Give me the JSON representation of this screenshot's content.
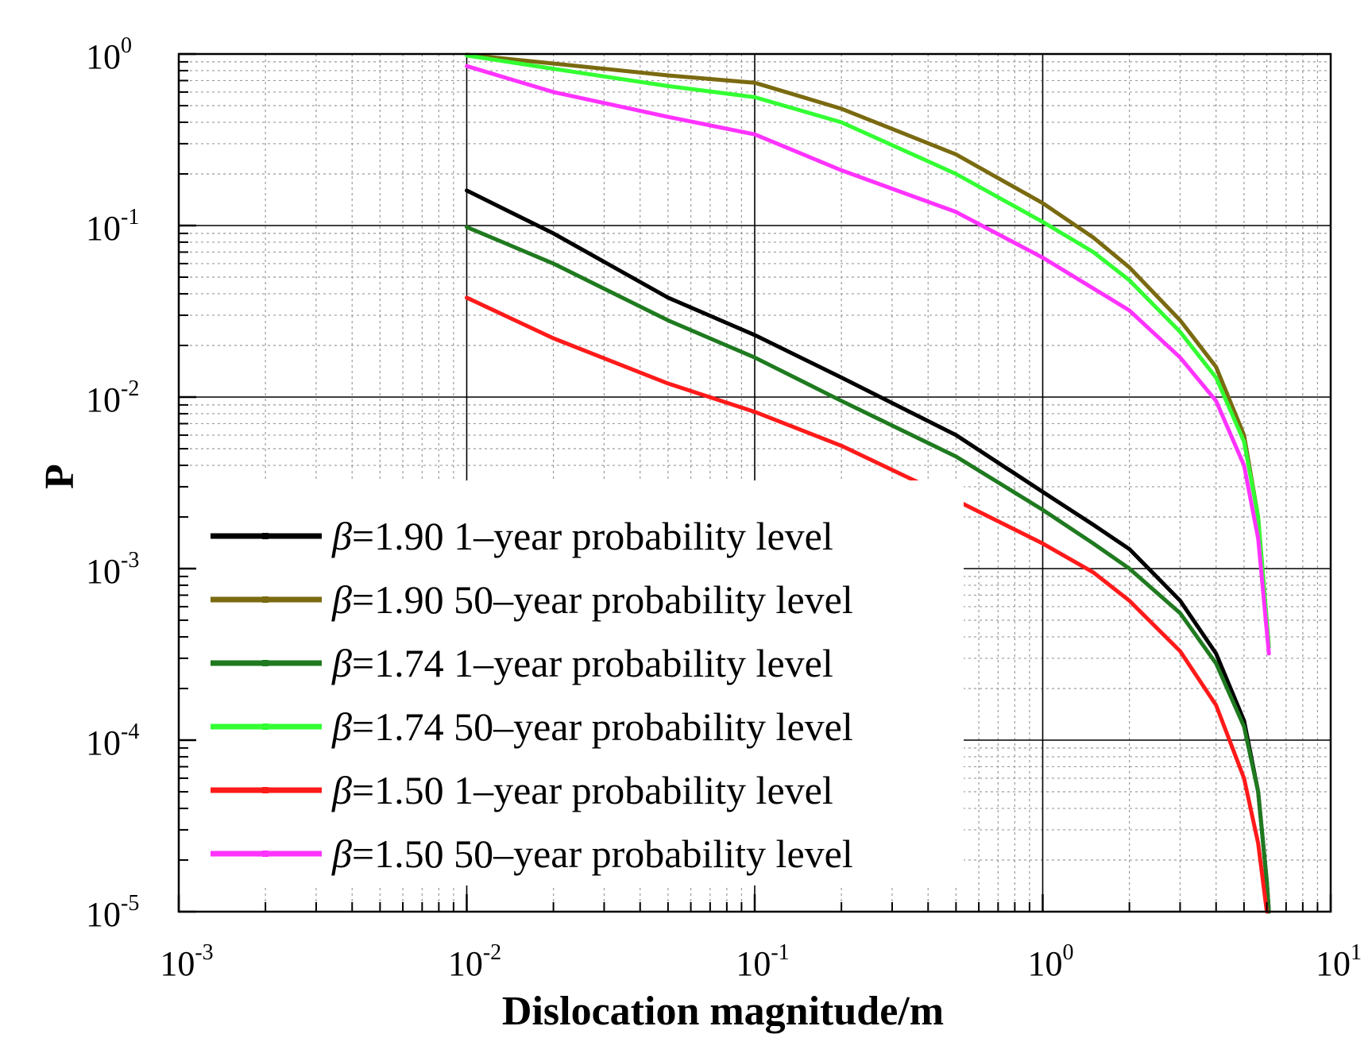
{
  "chart_data": {
    "type": "line",
    "xlabel": "Dislocation magnitude/m",
    "ylabel": "P",
    "x_scale": "log",
    "y_scale": "log",
    "xlim": [
      0.001,
      10
    ],
    "ylim": [
      1e-05,
      1
    ],
    "x_ticks": [
      {
        "base": "10",
        "exp": "-3"
      },
      {
        "base": "10",
        "exp": "-2"
      },
      {
        "base": "10",
        "exp": "-1"
      },
      {
        "base": "10",
        "exp": "0"
      },
      {
        "base": "10",
        "exp": "1"
      }
    ],
    "y_ticks": [
      {
        "base": "10",
        "exp": "0"
      },
      {
        "base": "10",
        "exp": "-1"
      },
      {
        "base": "10",
        "exp": "-2"
      },
      {
        "base": "10",
        "exp": "-3"
      },
      {
        "base": "10",
        "exp": "-4"
      },
      {
        "base": "10",
        "exp": "-5"
      }
    ],
    "grid": true,
    "legend_position": "lower-left",
    "series": [
      {
        "name": "β=1.90 1–year probability level",
        "beta": "β",
        "label": "=1.90 1–year probability level",
        "color": "#000000",
        "points": [
          [
            0.01,
            0.16
          ],
          [
            0.02,
            0.09
          ],
          [
            0.05,
            0.038
          ],
          [
            0.1,
            0.023
          ],
          [
            0.2,
            0.013
          ],
          [
            0.5,
            0.006
          ],
          [
            1,
            0.0028
          ],
          [
            1.5,
            0.0018
          ],
          [
            2,
            0.0013
          ],
          [
            3,
            0.00065
          ],
          [
            4,
            0.00032
          ],
          [
            5,
            0.00013
          ],
          [
            5.6,
            5e-05
          ],
          [
            6,
            1.5e-05
          ],
          [
            6.1,
            1e-05
          ]
        ]
      },
      {
        "name": "β=1.90 50–year probability level",
        "beta": "β",
        "label": "=1.90 50–year probability level",
        "color": "#7a6a10",
        "points": [
          [
            0.01,
            0.99
          ],
          [
            0.02,
            0.88
          ],
          [
            0.05,
            0.75
          ],
          [
            0.1,
            0.68
          ],
          [
            0.2,
            0.48
          ],
          [
            0.5,
            0.26
          ],
          [
            1,
            0.135
          ],
          [
            1.5,
            0.085
          ],
          [
            2,
            0.057
          ],
          [
            3,
            0.028
          ],
          [
            4,
            0.015
          ],
          [
            5,
            0.006
          ],
          [
            5.6,
            0.002
          ],
          [
            6.1,
            0.00035
          ]
        ]
      },
      {
        "name": "β=1.74 1–year probability level",
        "beta": "β",
        "label": "=1.74 1–year probability level",
        "color": "#1f7a1f",
        "points": [
          [
            0.01,
            0.098
          ],
          [
            0.02,
            0.06
          ],
          [
            0.05,
            0.028
          ],
          [
            0.1,
            0.017
          ],
          [
            0.2,
            0.0095
          ],
          [
            0.5,
            0.0045
          ],
          [
            1,
            0.0022
          ],
          [
            1.5,
            0.0014
          ],
          [
            2,
            0.001
          ],
          [
            3,
            0.00055
          ],
          [
            4,
            0.00028
          ],
          [
            5,
            0.00012
          ],
          [
            5.6,
            5e-05
          ],
          [
            6,
            1.5e-05
          ],
          [
            6.1,
            1e-05
          ]
        ]
      },
      {
        "name": "β=1.74 50–year probability level",
        "beta": "β",
        "label": "=1.74 50–year probability level",
        "color": "#33ff33",
        "points": [
          [
            0.01,
            0.98
          ],
          [
            0.02,
            0.82
          ],
          [
            0.05,
            0.65
          ],
          [
            0.1,
            0.56
          ],
          [
            0.2,
            0.4
          ],
          [
            0.5,
            0.2
          ],
          [
            1,
            0.105
          ],
          [
            1.5,
            0.07
          ],
          [
            2,
            0.048
          ],
          [
            3,
            0.024
          ],
          [
            4,
            0.013
          ],
          [
            5,
            0.0055
          ],
          [
            5.6,
            0.002
          ],
          [
            6.1,
            0.00035
          ]
        ]
      },
      {
        "name": "β=1.50 1–year probability level",
        "beta": "β",
        "label": "=1.50 1–year probability level",
        "color": "#ff1a1a",
        "points": [
          [
            0.01,
            0.038
          ],
          [
            0.02,
            0.022
          ],
          [
            0.05,
            0.012
          ],
          [
            0.1,
            0.0082
          ],
          [
            0.2,
            0.0052
          ],
          [
            0.5,
            0.0025
          ],
          [
            1,
            0.0014
          ],
          [
            1.5,
            0.00095
          ],
          [
            2,
            0.00065
          ],
          [
            3,
            0.00033
          ],
          [
            4,
            0.00016
          ],
          [
            5,
            6e-05
          ],
          [
            5.6,
            2.5e-05
          ],
          [
            6,
            1e-05
          ]
        ]
      },
      {
        "name": "β=1.50 50–year probability level",
        "beta": "β",
        "label": "=1.50 50–year probability level",
        "color": "#ff33ff",
        "points": [
          [
            0.01,
            0.85
          ],
          [
            0.02,
            0.6
          ],
          [
            0.05,
            0.43
          ],
          [
            0.1,
            0.34
          ],
          [
            0.2,
            0.21
          ],
          [
            0.5,
            0.12
          ],
          [
            1,
            0.065
          ],
          [
            1.5,
            0.043
          ],
          [
            2,
            0.032
          ],
          [
            3,
            0.017
          ],
          [
            4,
            0.0095
          ],
          [
            5,
            0.004
          ],
          [
            5.6,
            0.0015
          ],
          [
            6.1,
            0.00032
          ]
        ]
      }
    ]
  }
}
